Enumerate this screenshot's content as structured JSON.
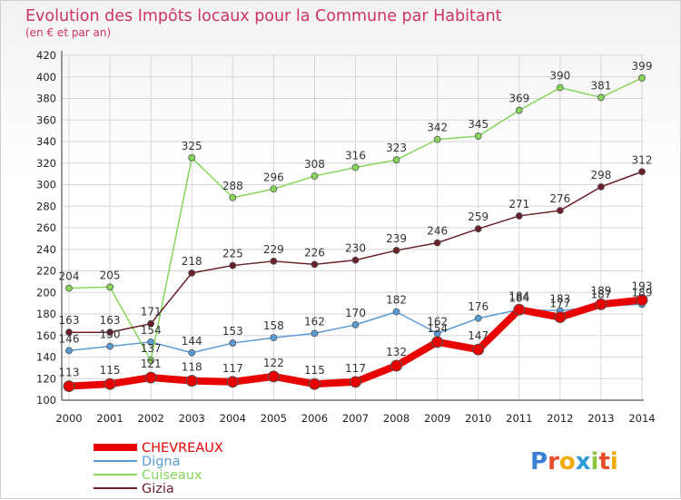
{
  "chart_data": {
    "type": "line",
    "title": "Evolution des Impôts locaux pour la Commune par Habitant",
    "subtitle": "(en € et par an)",
    "x": [
      "2000",
      "2001",
      "2002",
      "2003",
      "2004",
      "2005",
      "2006",
      "2007",
      "2008",
      "2009",
      "2010",
      "2011",
      "2012",
      "2013",
      "2014"
    ],
    "ylim": [
      100,
      420
    ],
    "yticks": [
      100,
      120,
      140,
      160,
      180,
      200,
      220,
      240,
      260,
      280,
      300,
      320,
      340,
      360,
      380,
      400,
      420
    ],
    "grid": true,
    "legend_position": "bottom-left",
    "series": [
      {
        "name": "CHEVREAUX",
        "color": "#e80000",
        "emphasis": true,
        "values": [
          113,
          115,
          121,
          118,
          117,
          122,
          115,
          117,
          132,
          154,
          147,
          184,
          177,
          189,
          193
        ]
      },
      {
        "name": "Digna",
        "color": "#5b9bd5",
        "emphasis": false,
        "values": [
          146,
          150,
          154,
          144,
          153,
          158,
          162,
          170,
          182,
          162,
          176,
          184,
          183,
          187,
          189
        ]
      },
      {
        "name": "Cuiseaux",
        "color": "#86d65a",
        "emphasis": false,
        "values": [
          204,
          205,
          137,
          325,
          288,
          296,
          308,
          316,
          323,
          342,
          345,
          369,
          390,
          381,
          399
        ]
      },
      {
        "name": "Gizia",
        "color": "#6b1f2a",
        "emphasis": false,
        "values": [
          163,
          163,
          171,
          218,
          225,
          229,
          226,
          230,
          239,
          246,
          259,
          271,
          276,
          298,
          312
        ]
      }
    ]
  },
  "watermark": "Proxiti"
}
